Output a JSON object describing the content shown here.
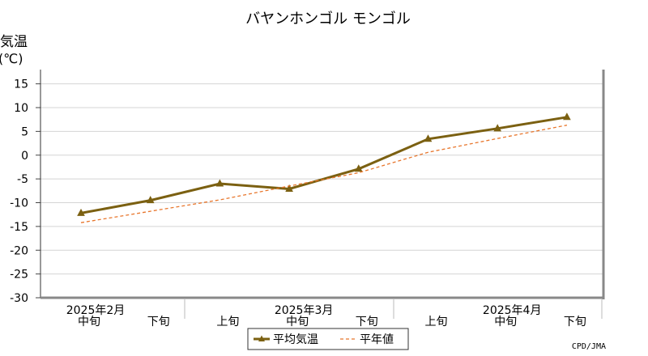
{
  "chart_data": {
    "type": "line",
    "title": "バヤンホンゴル モンゴル",
    "ylabel": "気温",
    "yunit": "(℃)",
    "ylim": [
      -30,
      18
    ],
    "yticks": [
      15,
      10,
      5,
      0,
      -5,
      -10,
      -15,
      -20,
      -25,
      -30
    ],
    "categories": [
      "中旬",
      "下旬",
      "上旬",
      "中旬",
      "下旬",
      "上旬",
      "中旬",
      "下旬"
    ],
    "month_labels": [
      {
        "label": "2025年2月",
        "category_index": 0
      },
      {
        "label": "2025年3月",
        "category_index": 3
      },
      {
        "label": "2025年4月",
        "category_index": 6
      }
    ],
    "series": [
      {
        "name": "平均気温",
        "color": "#7b6011",
        "style": "solid-marker",
        "values": [
          -12.2,
          -9.5,
          -6.0,
          -7.1,
          -2.9,
          3.4,
          5.6,
          8.0
        ]
      },
      {
        "name": "平年値",
        "color": "#e8762c",
        "style": "dashed",
        "values": [
          -14.2,
          -11.8,
          -9.4,
          -6.5,
          -3.7,
          0.6,
          3.5,
          6.3
        ]
      }
    ],
    "grid": true,
    "legend": "bottom-center",
    "source": "CPD/JMA"
  }
}
